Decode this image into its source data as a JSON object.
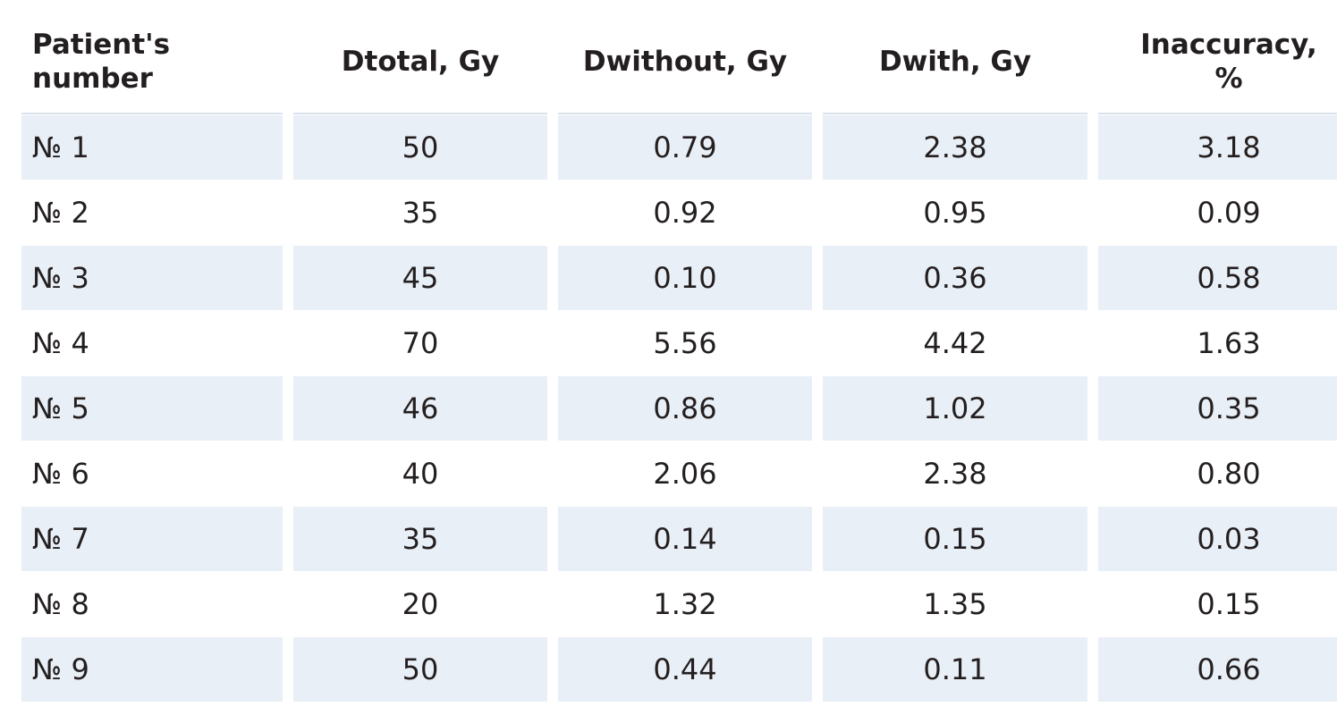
{
  "table": {
    "headers": [
      "Patient's number",
      "Dtotal, Gy",
      "Dwithout, Gy",
      "Dwith, Gy",
      "Inaccuracy, %"
    ],
    "rows": [
      [
        "№ 1",
        "50",
        "0.79",
        "2.38",
        "3.18"
      ],
      [
        "№ 2",
        "35",
        "0.92",
        "0.95",
        "0.09"
      ],
      [
        "№ 3",
        "45",
        "0.10",
        "0.36",
        "0.58"
      ],
      [
        "№ 4",
        "70",
        "5.56",
        "4.42",
        "1.63"
      ],
      [
        "№ 5",
        "46",
        "0.86",
        "1.02",
        "0.35"
      ],
      [
        "№ 6",
        "40",
        "2.06",
        "2.38",
        "0.80"
      ],
      [
        "№ 7",
        "35",
        "0.14",
        "0.15",
        "0.03"
      ],
      [
        "№ 8",
        "20",
        "1.32",
        "1.35",
        "0.15"
      ],
      [
        "№ 9",
        "50",
        "0.44",
        "0.11",
        "0.66"
      ]
    ]
  },
  "colors": {
    "row_shade": "#e9eff6",
    "text": "#231f20"
  }
}
